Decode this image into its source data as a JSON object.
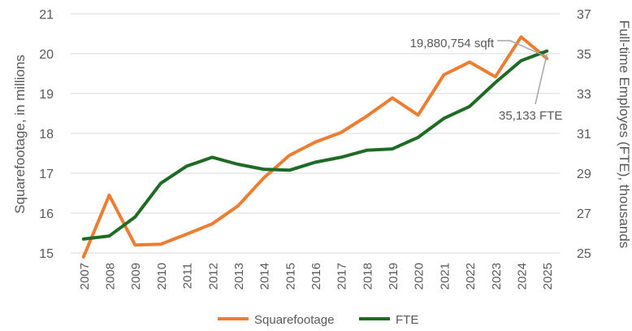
{
  "chart_data": {
    "type": "line",
    "x": [
      "2007",
      "2008",
      "2009",
      "2010",
      "2011",
      "2012",
      "2013",
      "2014",
      "2015",
      "2016",
      "2017",
      "2018",
      "2019",
      "2020",
      "2021",
      "2022",
      "2023",
      "2024",
      "2025"
    ],
    "series": [
      {
        "name": "Squarefootage",
        "axis": "left",
        "color": "#ED7D31",
        "values": [
          14.9,
          16.45,
          15.2,
          15.22,
          15.47,
          15.73,
          16.18,
          16.88,
          17.45,
          17.78,
          18.02,
          18.43,
          18.89,
          18.46,
          19.47,
          19.79,
          19.42,
          20.42,
          19.88
        ]
      },
      {
        "name": "FTE",
        "axis": "right",
        "color": "#1E6B24",
        "values": [
          25.7,
          25.85,
          26.8,
          28.5,
          29.35,
          29.8,
          29.45,
          29.2,
          29.15,
          29.55,
          29.8,
          30.15,
          30.22,
          30.8,
          31.75,
          32.35,
          33.55,
          34.65,
          35.133
        ]
      }
    ],
    "left_axis": {
      "label": "Squarefootage, in millions",
      "ticks": [
        "15",
        "16",
        "17",
        "18",
        "19",
        "20",
        "21"
      ],
      "range": [
        15,
        21
      ]
    },
    "right_axis": {
      "label": "Full-time Employes (FTE), thousands",
      "ticks": [
        "25",
        "27",
        "29",
        "31",
        "33",
        "35",
        "37"
      ],
      "range": [
        25,
        37
      ]
    },
    "annotations": [
      {
        "text": "19,880,754 sqft",
        "series": "Squarefootage",
        "point": "2025"
      },
      {
        "text": "35,133 FTE",
        "series": "FTE",
        "point": "2025"
      }
    ],
    "legend": {
      "position": "bottom",
      "entries": [
        "Squarefootage",
        "FTE"
      ]
    },
    "grid": true,
    "gridColor": "#D9D9D9",
    "textColor": "#595959"
  }
}
